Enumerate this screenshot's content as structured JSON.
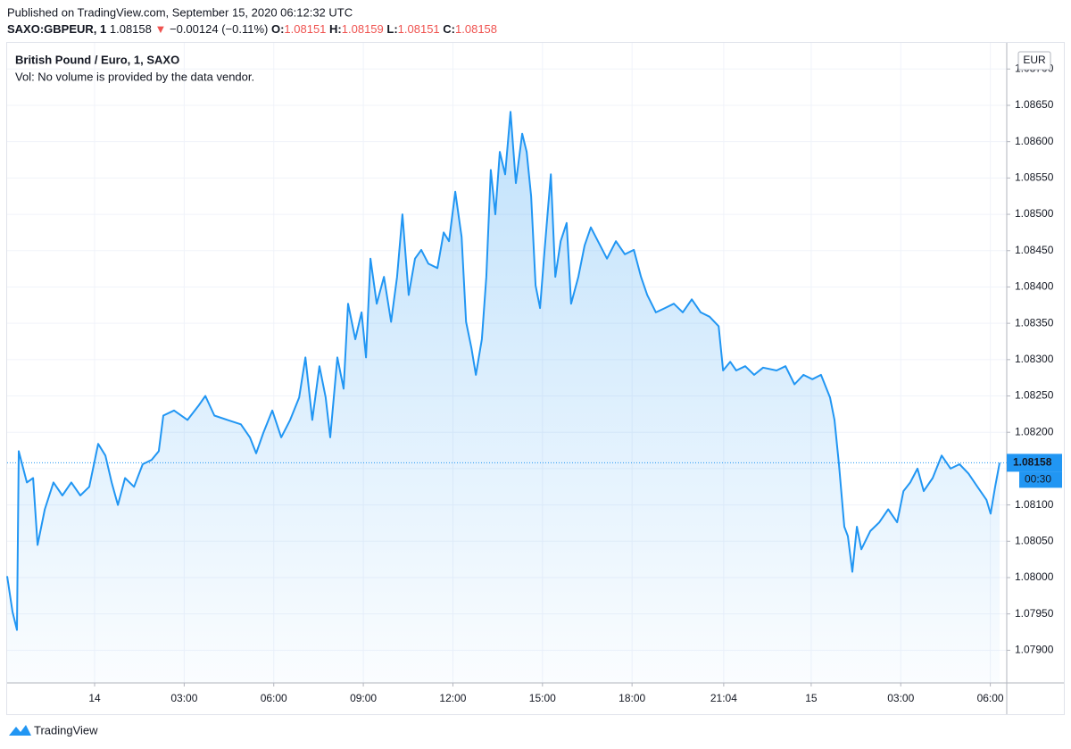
{
  "header": {
    "published": "Published on TradingView.com, September 15, 2020 06:12:32 UTC",
    "symbol": "SAXO:GBPEUR, 1",
    "last": "1.08158",
    "arrow": "▼",
    "change": "−0.00124 (−0.11%)",
    "open_label": "O:",
    "open": "1.08151",
    "high_label": "H:",
    "high": "1.08159",
    "low_label": "L:",
    "low": "1.08151",
    "close_label": "C:",
    "close": "1.08158"
  },
  "footer": {
    "brand": "TradingView"
  },
  "chart_data": {
    "type": "area",
    "title": "British Pound / Euro, 1, SAXO",
    "subtitle": "Vol: No volume is provided by the data vendor.",
    "currency_label": "EUR",
    "countdown": "00:30",
    "color": "#2196f3",
    "grid": true,
    "xlim": [
      -2.93,
      30.55
    ],
    "ylim": [
      1.07855,
      1.08736
    ],
    "xticks": [
      {
        "value": 0,
        "label": "14"
      },
      {
        "value": 3,
        "label": "03:00"
      },
      {
        "value": 6,
        "label": "06:00"
      },
      {
        "value": 9,
        "label": "09:00"
      },
      {
        "value": 12,
        "label": "12:00"
      },
      {
        "value": 15,
        "label": "15:00"
      },
      {
        "value": 18,
        "label": "18:00"
      },
      {
        "value": 21.07,
        "label": "21:04"
      },
      {
        "value": 24,
        "label": "15"
      },
      {
        "value": 27,
        "label": "03:00"
      },
      {
        "value": 30,
        "label": "06:00"
      }
    ],
    "yticks": [
      {
        "value": 1.079,
        "label": "1.07900"
      },
      {
        "value": 1.0795,
        "label": "1.07950"
      },
      {
        "value": 1.08,
        "label": "1.08000"
      },
      {
        "value": 1.0805,
        "label": "1.08050"
      },
      {
        "value": 1.081,
        "label": "1.08100"
      },
      {
        "value": 1.0815,
        "label": "1.08150"
      },
      {
        "value": 1.082,
        "label": "1.08200"
      },
      {
        "value": 1.0825,
        "label": "1.08250"
      },
      {
        "value": 1.083,
        "label": "1.08300"
      },
      {
        "value": 1.0835,
        "label": "1.08350"
      },
      {
        "value": 1.084,
        "label": "1.08400"
      },
      {
        "value": 1.0845,
        "label": "1.08450"
      },
      {
        "value": 1.085,
        "label": "1.08500"
      },
      {
        "value": 1.0855,
        "label": "1.08550"
      },
      {
        "value": 1.086,
        "label": "1.08600"
      },
      {
        "value": 1.0865,
        "label": "1.08650"
      },
      {
        "value": 1.087,
        "label": "1.08700"
      }
    ],
    "x": [
      -2.93,
      -2.75,
      -2.6,
      -2.54,
      -2.27,
      -2.06,
      -1.91,
      -1.67,
      -1.38,
      -1.08,
      -0.78,
      -0.48,
      -0.18,
      0.12,
      0.36,
      0.57,
      0.78,
      1.02,
      1.32,
      1.61,
      1.91,
      2.15,
      2.3,
      2.66,
      3.11,
      3.47,
      3.71,
      4.01,
      4.45,
      4.9,
      5.2,
      5.41,
      5.65,
      5.95,
      6.25,
      6.55,
      6.85,
      7.06,
      7.29,
      7.53,
      7.74,
      7.89,
      8.13,
      8.34,
      8.49,
      8.73,
      8.94,
      9.09,
      9.24,
      9.45,
      9.69,
      9.93,
      10.13,
      10.31,
      10.52,
      10.73,
      10.94,
      11.18,
      11.48,
      11.69,
      11.87,
      12.08,
      12.29,
      12.44,
      12.62,
      12.77,
      12.97,
      13.12,
      13.27,
      13.42,
      13.57,
      13.75,
      13.93,
      14.11,
      14.32,
      14.47,
      14.62,
      14.77,
      14.92,
      15.07,
      15.28,
      15.43,
      15.61,
      15.81,
      15.96,
      16.2,
      16.41,
      16.62,
      16.86,
      17.16,
      17.46,
      17.76,
      18.06,
      18.3,
      18.51,
      18.8,
      19.1,
      19.4,
      19.7,
      20.0,
      20.3,
      20.6,
      20.9,
      21.05,
      21.29,
      21.49,
      21.79,
      22.09,
      22.39,
      22.84,
      23.14,
      23.44,
      23.74,
      24.04,
      24.33,
      24.63,
      24.78,
      24.93,
      25.11,
      25.23,
      25.38,
      25.53,
      25.68,
      25.98,
      26.28,
      26.58,
      26.88,
      27.09,
      27.32,
      27.56,
      27.77,
      28.07,
      28.37,
      28.67,
      28.97,
      29.27,
      29.57,
      29.87,
      30.01,
      30.16,
      30.31
    ],
    "values": [
      1.08002,
      1.07953,
      1.07928,
      1.08174,
      1.08131,
      1.08137,
      1.08045,
      1.08094,
      1.08131,
      1.08113,
      1.08131,
      1.08113,
      1.08125,
      1.08184,
      1.08168,
      1.08131,
      1.081,
      1.08137,
      1.08125,
      1.08156,
      1.08162,
      1.08174,
      1.08223,
      1.0823,
      1.08217,
      1.08236,
      1.0825,
      1.08223,
      1.08217,
      1.08211,
      1.08193,
      1.08171,
      1.08199,
      1.0823,
      1.08193,
      1.08217,
      1.08248,
      1.08303,
      1.08217,
      1.08291,
      1.08248,
      1.08193,
      1.08303,
      1.0826,
      1.08377,
      1.08328,
      1.08365,
      1.08303,
      1.08439,
      1.08377,
      1.08414,
      1.08352,
      1.08414,
      1.085,
      1.08389,
      1.08439,
      1.08451,
      1.08432,
      1.08426,
      1.08475,
      1.08463,
      1.08531,
      1.08469,
      1.08352,
      1.08316,
      1.08279,
      1.08328,
      1.08414,
      1.08561,
      1.085,
      1.08586,
      1.08555,
      1.08641,
      1.08543,
      1.08611,
      1.08586,
      1.08525,
      1.08402,
      1.08371,
      1.08451,
      1.08555,
      1.08414,
      1.08463,
      1.08488,
      1.08377,
      1.08414,
      1.08457,
      1.08482,
      1.08463,
      1.08439,
      1.08463,
      1.08445,
      1.08451,
      1.08414,
      1.08389,
      1.08365,
      1.08371,
      1.08377,
      1.08365,
      1.08383,
      1.08365,
      1.08359,
      1.08346,
      1.08285,
      1.08297,
      1.08285,
      1.08291,
      1.08279,
      1.08289,
      1.08285,
      1.08291,
      1.08266,
      1.08279,
      1.08273,
      1.08279,
      1.08248,
      1.08217,
      1.08156,
      1.0807,
      1.08057,
      1.08008,
      1.0807,
      1.08039,
      1.08064,
      1.08076,
      1.08094,
      1.08076,
      1.08119,
      1.08131,
      1.0815,
      1.08119,
      1.08137,
      1.08168,
      1.0815,
      1.08156,
      1.08143,
      1.08125,
      1.08107,
      1.08088,
      1.08125,
      1.08158
    ]
  }
}
